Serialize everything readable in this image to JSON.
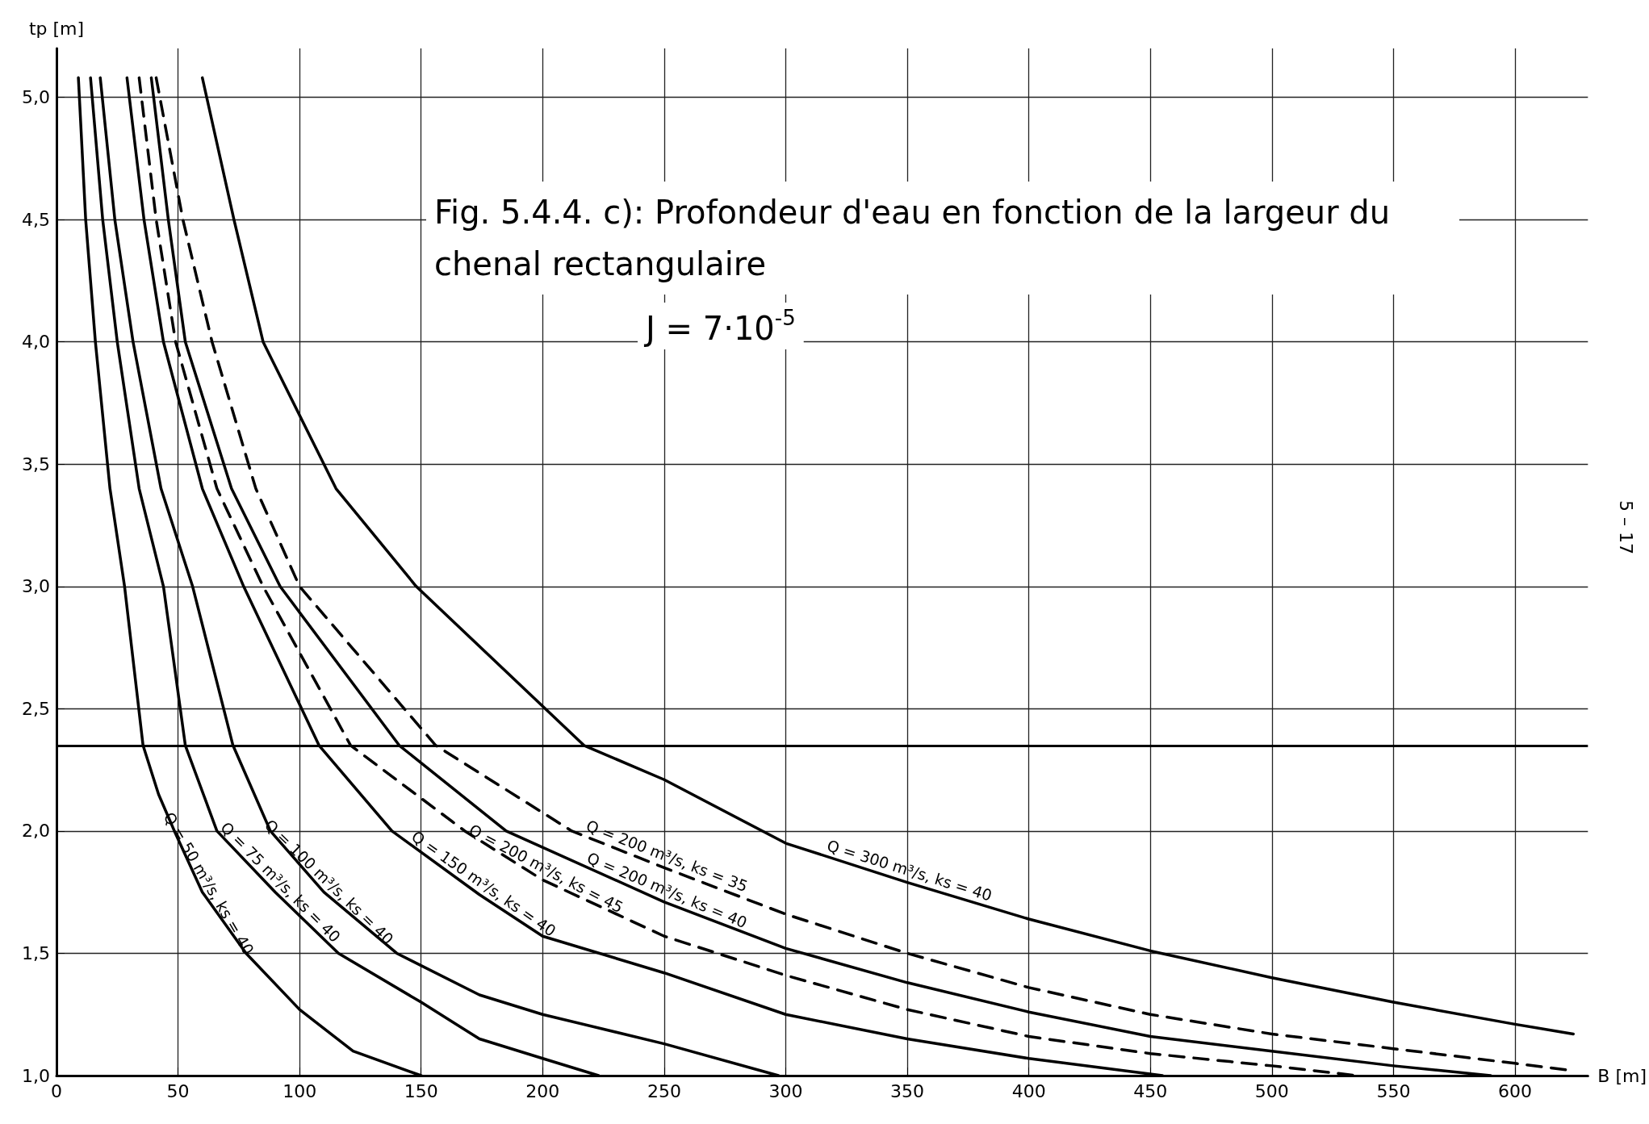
{
  "chart_data": {
    "type": "line",
    "title": "Fig. 5.4.4. c): Profondeur d'eau en fonction de la largeur du chenal rectangulaire",
    "subtitle": "J = 7·10$^{-5}$",
    "xlabel": "B [m]",
    "ylabel": "tp [m]",
    "xlim": [
      0,
      630
    ],
    "xticks": [
      0,
      50,
      100,
      150,
      200,
      250,
      300,
      350,
      400,
      450,
      500,
      550,
      600
    ],
    "ylim": [
      1,
      5.2
    ],
    "yticks": [
      {
        "value": 1,
        "label": "1,0"
      },
      {
        "value": 1.5,
        "label": "1,5"
      },
      {
        "value": 2,
        "label": "2,0"
      },
      {
        "value": 2.5,
        "label": "2,5"
      },
      {
        "value": 3,
        "label": "3,0"
      },
      {
        "value": 3.5,
        "label": "3,5"
      },
      {
        "value": 4,
        "label": "4,0"
      },
      {
        "value": 4.5,
        "label": "4,5"
      },
      {
        "value": 5,
        "label": "5,0"
      }
    ],
    "grid": true,
    "legend": false,
    "marker": "none",
    "line_style": "solid",
    "ref_lines": [
      {
        "axis": "y",
        "value": 2.35,
        "color": "#000000"
      }
    ],
    "annotations": [
      "5 – 17"
    ],
    "series": [
      {
        "name": "Q = 50 m³/s, ks = 40",
        "color": "#000000",
        "x": [
          9,
          12,
          16,
          22,
          28,
          35.6,
          42,
          48.5,
          60,
          78,
          100,
          122,
          150
        ],
        "values": [
          5.08,
          4.5,
          4.0,
          3.4,
          3.0,
          2.35,
          2.15,
          2.0,
          1.75,
          1.5,
          1.27,
          1.1,
          1.0
        ]
      },
      {
        "name": "Q = 75 m³/s, ks = 40",
        "color": "#000000",
        "x": [
          14,
          19,
          25,
          34,
          44,
          53,
          66,
          90,
          116,
          150,
          174,
          200,
          223
        ],
        "values": [
          5.08,
          4.5,
          4.0,
          3.4,
          3.0,
          2.35,
          2.0,
          1.75,
          1.5,
          1.3,
          1.15,
          1.07,
          1.0
        ]
      },
      {
        "name": "Q = 100 m³/s, ks = 40",
        "color": "#000000",
        "x": [
          18,
          24,
          31.5,
          43,
          56,
          72.6,
          88,
          110,
          140,
          174,
          200,
          250,
          297
        ],
        "values": [
          5.08,
          4.5,
          4.0,
          3.4,
          3.0,
          2.35,
          2.0,
          1.75,
          1.5,
          1.33,
          1.25,
          1.13,
          1.0
        ]
      },
      {
        "name": "Q = 150 m³/s, ks = 40",
        "color": "#000000",
        "x": [
          29,
          36,
          44,
          60,
          77,
          108,
          138,
          174,
          200,
          250,
          300,
          350,
          400,
          455
        ],
        "values": [
          5.08,
          4.5,
          4.0,
          3.4,
          3.0,
          2.35,
          2.0,
          1.74,
          1.57,
          1.42,
          1.25,
          1.15,
          1.07,
          1.0
        ]
      },
      {
        "name": "Q = 200 m³/s, ks = 45",
        "color": "#000000",
        "line_style": "dashed",
        "x": [
          34,
          41,
          49,
          66,
          85,
          121,
          168,
          200,
          250,
          300,
          350,
          400,
          450,
          500,
          535
        ],
        "values": [
          5.08,
          4.5,
          4.0,
          3.4,
          3.0,
          2.35,
          2.0,
          1.8,
          1.57,
          1.41,
          1.27,
          1.16,
          1.09,
          1.04,
          1.0
        ]
      },
      {
        "name": "Q = 200 m³/s, ks = 40",
        "color": "#000000",
        "x": [
          39,
          46,
          53,
          72,
          92,
          141,
          185,
          250,
          300,
          350,
          400,
          450,
          500,
          550,
          590
        ],
        "values": [
          5.08,
          4.5,
          4.0,
          3.4,
          3.0,
          2.35,
          2.0,
          1.71,
          1.52,
          1.38,
          1.26,
          1.16,
          1.1,
          1.04,
          1.0
        ]
      },
      {
        "name": "Q = 200 m³/s, ks = 35",
        "color": "#000000",
        "line_style": "dashed",
        "x": [
          41,
          52,
          64,
          82,
          100,
          156,
          212,
          250,
          300,
          350,
          400,
          450,
          500,
          550,
          600,
          624
        ],
        "values": [
          5.08,
          4.5,
          4.0,
          3.4,
          3.0,
          2.35,
          2.0,
          1.85,
          1.66,
          1.5,
          1.36,
          1.25,
          1.17,
          1.11,
          1.05,
          1.02
        ]
      },
      {
        "name": "Q = 300 m³/s, ks = 40",
        "color": "#000000",
        "x": [
          60,
          73,
          85,
          115,
          148,
          217,
          250,
          300,
          350,
          400,
          450,
          500,
          550,
          600,
          624
        ],
        "values": [
          5.08,
          4.5,
          4.0,
          3.4,
          3.0,
          2.35,
          2.21,
          1.95,
          1.79,
          1.64,
          1.51,
          1.4,
          1.3,
          1.21,
          1.17
        ]
      }
    ]
  }
}
